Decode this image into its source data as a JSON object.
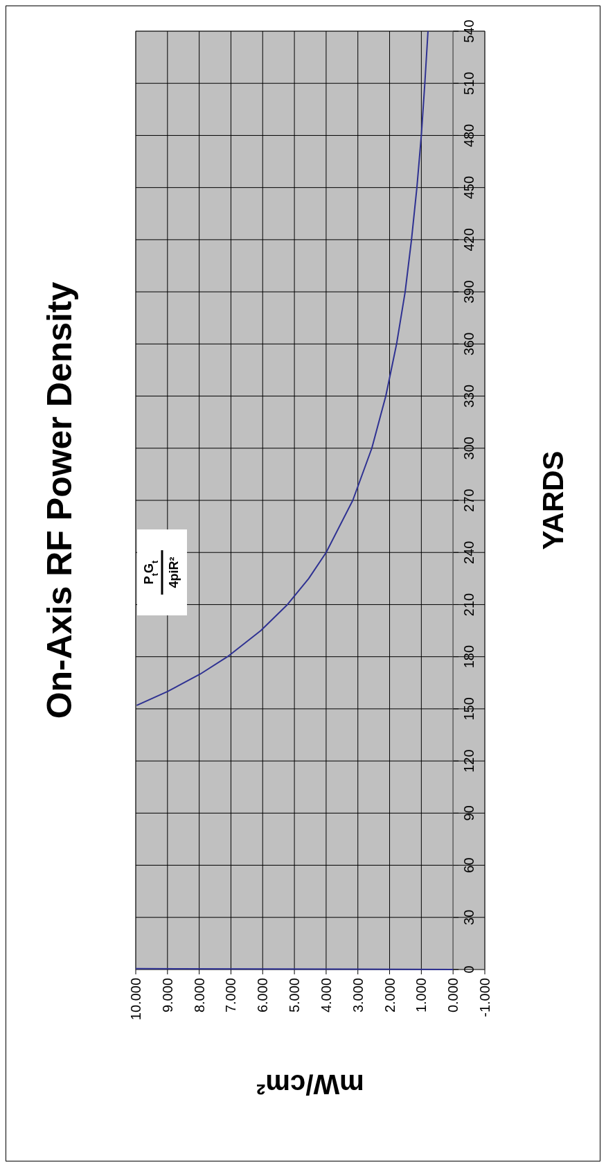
{
  "chart_data": {
    "type": "line",
    "title": "On-Axis RF Power Density",
    "xlabel": "mW/cm²",
    "ylabel": "YARDS",
    "annotations": [
      "P$_{t}$G$_{t}$",
      "4piR²"
    ],
    "series": [
      {
        "color": "#2e3192",
        "x": [
          0,
          10,
          null,
          9.97,
          9.0,
          7.97,
          7.11,
          6.06,
          5.22,
          4.55,
          4.0,
          3.16,
          2.56,
          2.12,
          1.78,
          1.51,
          1.31,
          1.14,
          1.0,
          0.89,
          0.79
        ],
        "values": [
          0,
          0.5,
          null,
          152,
          160,
          170,
          180,
          195,
          210,
          225,
          240,
          270,
          300,
          330,
          360,
          390,
          420,
          450,
          480,
          510,
          540
        ]
      }
    ],
    "ylim": [
      0,
      540
    ],
    "yticks": [
      0,
      30,
      60,
      90,
      120,
      150,
      180,
      210,
      240,
      270,
      300,
      330,
      360,
      390,
      420,
      450,
      480,
      510,
      540
    ],
    "xlim": [
      10,
      -1
    ],
    "xticks": [
      {
        "value": 10,
        "label": "10.000"
      },
      {
        "value": 9,
        "label": "9.000"
      },
      {
        "value": 8,
        "label": "8.000"
      },
      {
        "value": 7,
        "label": "7.000"
      },
      {
        "value": 6,
        "label": "6.000"
      },
      {
        "value": 5,
        "label": "5.000"
      },
      {
        "value": 4,
        "label": "4.000"
      },
      {
        "value": 3,
        "label": "3.000"
      },
      {
        "value": 2,
        "label": "2.000"
      },
      {
        "value": 1,
        "label": "1.000"
      },
      {
        "value": 0,
        "label": "0.000"
      },
      {
        "value": -1,
        "label": "-1.000"
      }
    ],
    "grid": true,
    "marker": "none",
    "line_style": "solid"
  }
}
